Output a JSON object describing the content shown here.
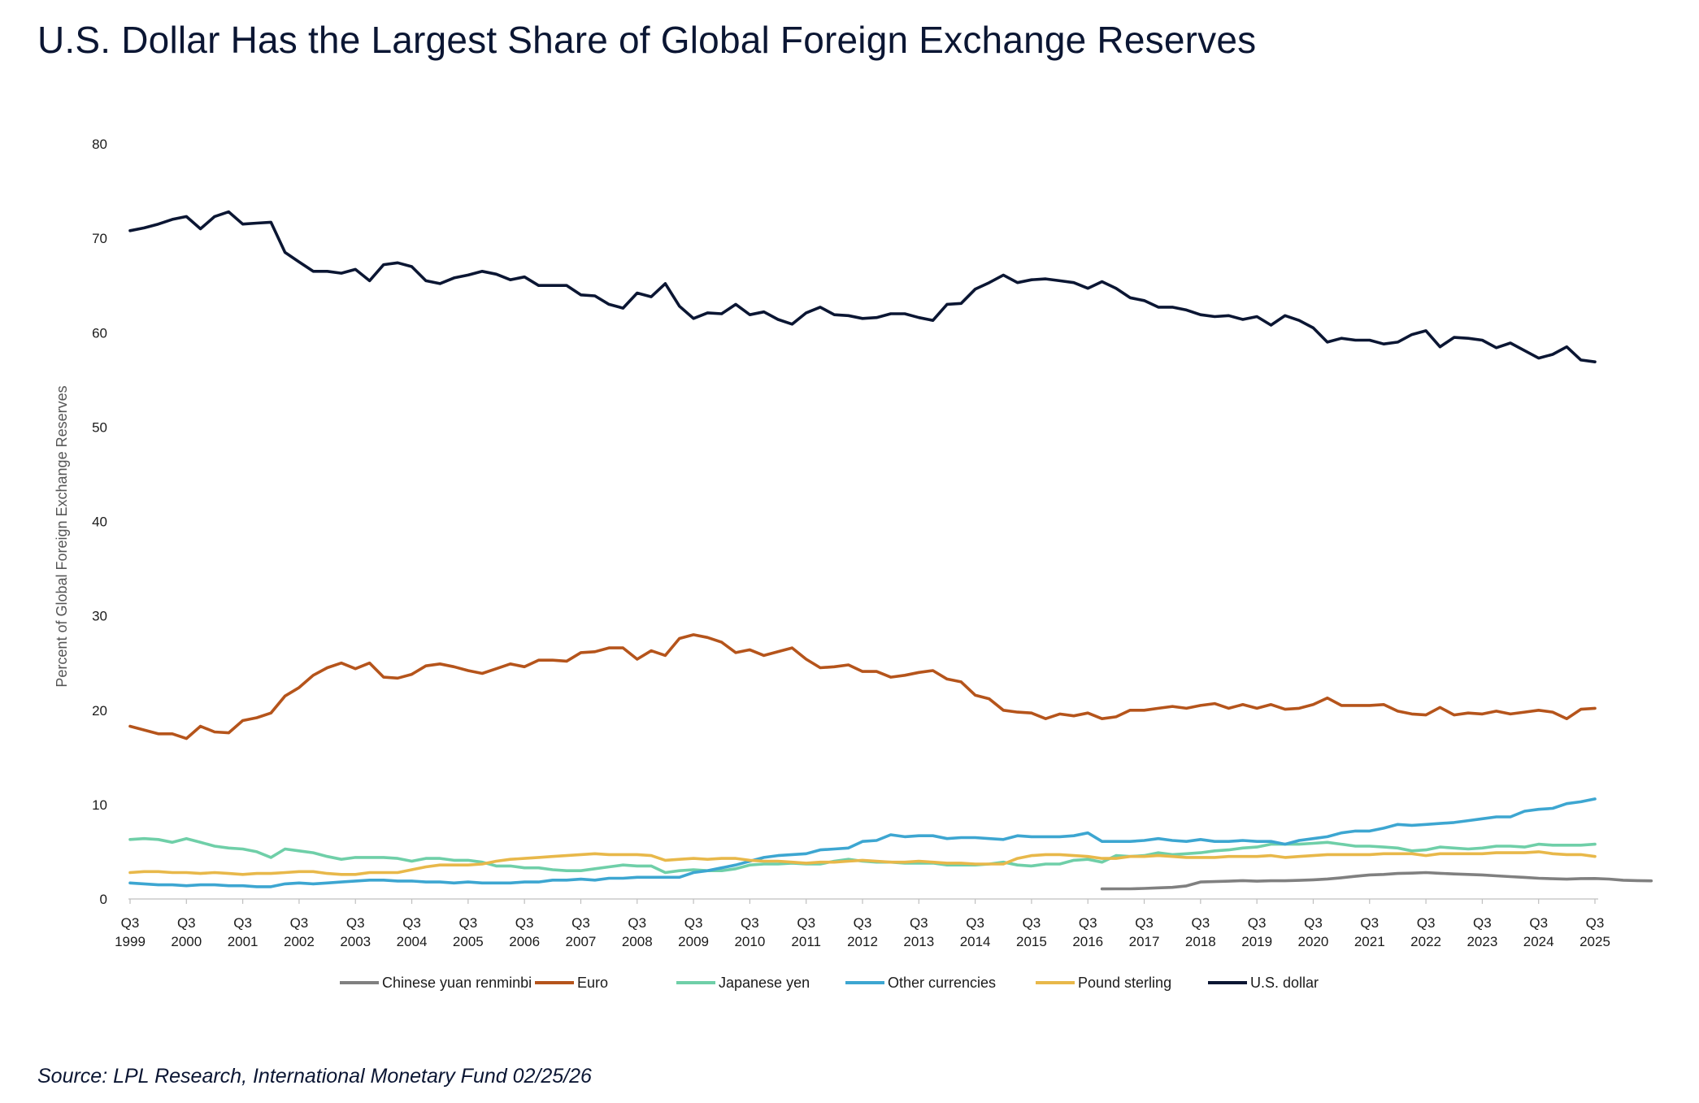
{
  "title": "U.S. Dollar Has the Largest Share of Global Foreign Exchange Reserves",
  "source": "Source: LPL Research, International Monetary Fund 02/25/26",
  "chart_data": {
    "type": "line",
    "title": "U.S. Dollar Has the Largest Share of Global Foreign Exchange Reserves",
    "ylabel": "Percent of Global Foreign Exchange Reserves",
    "xlabel": "",
    "ylim": [
      0,
      80
    ],
    "yticks": [
      0,
      10,
      20,
      30,
      40,
      50,
      60,
      70,
      80
    ],
    "grid": false,
    "legend_position": "bottom",
    "x_start": "Q3 1999",
    "x_end": "Q3 2025",
    "frequency": "quarterly",
    "xtick_labels": [
      {
        "q": "Q3",
        "year": "1999"
      },
      {
        "q": "Q3",
        "year": "2000"
      },
      {
        "q": "Q3",
        "year": "2001"
      },
      {
        "q": "Q3",
        "year": "2002"
      },
      {
        "q": "Q3",
        "year": "2003"
      },
      {
        "q": "Q3",
        "year": "2004"
      },
      {
        "q": "Q3",
        "year": "2005"
      },
      {
        "q": "Q3",
        "year": "2006"
      },
      {
        "q": "Q3",
        "year": "2007"
      },
      {
        "q": "Q3",
        "year": "2008"
      },
      {
        "q": "Q3",
        "year": "2009"
      },
      {
        "q": "Q3",
        "year": "2010"
      },
      {
        "q": "Q3",
        "year": "2011"
      },
      {
        "q": "Q3",
        "year": "2012"
      },
      {
        "q": "Q3",
        "year": "2013"
      },
      {
        "q": "Q3",
        "year": "2014"
      },
      {
        "q": "Q3",
        "year": "2015"
      },
      {
        "q": "Q3",
        "year": "2016"
      },
      {
        "q": "Q3",
        "year": "2017"
      },
      {
        "q": "Q3",
        "year": "2018"
      },
      {
        "q": "Q3",
        "year": "2019"
      },
      {
        "q": "Q3",
        "year": "2020"
      },
      {
        "q": "Q3",
        "year": "2021"
      },
      {
        "q": "Q3",
        "year": "2022"
      },
      {
        "q": "Q3",
        "year": "2023"
      },
      {
        "q": "Q3",
        "year": "2024"
      },
      {
        "q": "Q3",
        "year": "2025"
      }
    ],
    "series": [
      {
        "name": "Chinese yuan renminbi",
        "color": "#808080",
        "start": "Q4 2016",
        "values": [
          1.07,
          1.08,
          1.08,
          1.12,
          1.18,
          1.23,
          1.39,
          1.8,
          1.84,
          1.89,
          1.95,
          1.89,
          1.93,
          1.93,
          1.97,
          2.03,
          2.12,
          2.25,
          2.4,
          2.55,
          2.6,
          2.7,
          2.74,
          2.8,
          2.72,
          2.65,
          2.6,
          2.55,
          2.45,
          2.37,
          2.29,
          2.2,
          2.14,
          2.1,
          2.16,
          2.17,
          2.11,
          1.99,
          1.95,
          1.92
        ]
      },
      {
        "name": "Euro",
        "color": "#b5541b",
        "start": "Q3 1999",
        "values": [
          18.3,
          17.9,
          17.5,
          17.5,
          17.0,
          18.3,
          17.7,
          17.6,
          18.9,
          19.2,
          19.7,
          21.5,
          22.4,
          23.7,
          24.5,
          25.0,
          24.4,
          25.0,
          23.5,
          23.4,
          23.8,
          24.7,
          24.9,
          24.6,
          24.2,
          23.9,
          24.4,
          24.9,
          24.6,
          25.3,
          25.3,
          25.2,
          26.1,
          26.2,
          26.6,
          26.6,
          25.4,
          26.3,
          25.8,
          27.6,
          28.0,
          27.7,
          27.2,
          26.1,
          26.4,
          25.8,
          26.2,
          26.6,
          25.4,
          24.5,
          24.6,
          24.8,
          24.1,
          24.1,
          23.5,
          23.7,
          24.0,
          24.2,
          23.3,
          23.0,
          21.6,
          21.2,
          20.0,
          19.8,
          19.7,
          19.1,
          19.6,
          19.4,
          19.7,
          19.1,
          19.3,
          20.0,
          20.0,
          20.2,
          20.4,
          20.2,
          20.5,
          20.7,
          20.2,
          20.6,
          20.2,
          20.6,
          20.1,
          20.2,
          20.6,
          21.3,
          20.5,
          20.5,
          20.5,
          20.6,
          19.9,
          19.6,
          19.5,
          20.3,
          19.5,
          19.7,
          19.6,
          19.9,
          19.6,
          19.8,
          20.0,
          19.8,
          19.1,
          20.1,
          20.2
        ]
      },
      {
        "name": "Japanese yen",
        "color": "#6fcfa8",
        "start": "Q3 1999",
        "values": [
          6.3,
          6.4,
          6.3,
          6.0,
          6.4,
          6.0,
          5.6,
          5.4,
          5.3,
          5.0,
          4.4,
          5.3,
          5.1,
          4.9,
          4.5,
          4.2,
          4.4,
          4.4,
          4.4,
          4.3,
          4.0,
          4.3,
          4.3,
          4.1,
          4.1,
          3.9,
          3.5,
          3.5,
          3.3,
          3.3,
          3.1,
          3.0,
          3.0,
          3.2,
          3.4,
          3.6,
          3.5,
          3.5,
          2.8,
          3.0,
          3.1,
          3.0,
          3.0,
          3.2,
          3.6,
          3.7,
          3.7,
          3.8,
          3.7,
          3.7,
          4.0,
          4.2,
          4.0,
          3.9,
          3.9,
          3.8,
          3.8,
          3.8,
          3.6,
          3.6,
          3.6,
          3.7,
          3.9,
          3.6,
          3.5,
          3.7,
          3.7,
          4.1,
          4.2,
          3.9,
          4.6,
          4.5,
          4.6,
          4.9,
          4.7,
          4.8,
          4.9,
          5.1,
          5.2,
          5.4,
          5.5,
          5.8,
          5.8,
          5.8,
          5.9,
          6.0,
          5.8,
          5.6,
          5.6,
          5.5,
          5.4,
          5.1,
          5.2,
          5.5,
          5.4,
          5.3,
          5.4,
          5.6,
          5.6,
          5.5,
          5.8,
          5.7,
          5.7,
          5.7,
          5.8
        ]
      },
      {
        "name": "Other currencies",
        "color": "#3da6d1",
        "start": "Q3 1999",
        "values": [
          1.7,
          1.6,
          1.5,
          1.5,
          1.4,
          1.5,
          1.5,
          1.4,
          1.4,
          1.3,
          1.3,
          1.6,
          1.7,
          1.6,
          1.7,
          1.8,
          1.9,
          2.0,
          2.0,
          1.9,
          1.9,
          1.8,
          1.8,
          1.7,
          1.8,
          1.7,
          1.7,
          1.7,
          1.8,
          1.8,
          2.0,
          2.0,
          2.1,
          2.0,
          2.2,
          2.2,
          2.3,
          2.3,
          2.3,
          2.3,
          2.8,
          3.0,
          3.3,
          3.6,
          4.0,
          4.4,
          4.6,
          4.7,
          4.8,
          5.2,
          5.3,
          5.4,
          6.1,
          6.2,
          6.8,
          6.6,
          6.7,
          6.7,
          6.4,
          6.5,
          6.5,
          6.4,
          6.3,
          6.7,
          6.6,
          6.6,
          6.6,
          6.7,
          7.0,
          6.1,
          6.1,
          6.1,
          6.2,
          6.4,
          6.2,
          6.1,
          6.3,
          6.1,
          6.1,
          6.2,
          6.1,
          6.1,
          5.8,
          6.2,
          6.4,
          6.6,
          7.0,
          7.2,
          7.2,
          7.5,
          7.9,
          7.8,
          7.9,
          8.0,
          8.1,
          8.3,
          8.5,
          8.7,
          8.7,
          9.3,
          9.5,
          9.6,
          10.1,
          10.3,
          10.6
        ]
      },
      {
        "name": "Pound sterling",
        "color": "#e8b84a",
        "start": "Q3 1999",
        "values": [
          2.8,
          2.9,
          2.9,
          2.8,
          2.8,
          2.7,
          2.8,
          2.7,
          2.6,
          2.7,
          2.7,
          2.8,
          2.9,
          2.9,
          2.7,
          2.6,
          2.6,
          2.8,
          2.8,
          2.8,
          3.1,
          3.4,
          3.6,
          3.6,
          3.6,
          3.7,
          4.0,
          4.2,
          4.3,
          4.4,
          4.5,
          4.6,
          4.7,
          4.8,
          4.7,
          4.7,
          4.7,
          4.6,
          4.1,
          4.2,
          4.3,
          4.2,
          4.3,
          4.3,
          4.1,
          4.0,
          4.0,
          3.9,
          3.8,
          3.9,
          3.9,
          4.0,
          4.1,
          4.0,
          3.9,
          3.9,
          4.0,
          3.9,
          3.8,
          3.8,
          3.7,
          3.7,
          3.7,
          4.3,
          4.6,
          4.7,
          4.7,
          4.6,
          4.5,
          4.3,
          4.3,
          4.5,
          4.5,
          4.6,
          4.5,
          4.4,
          4.4,
          4.4,
          4.5,
          4.5,
          4.5,
          4.6,
          4.4,
          4.5,
          4.6,
          4.7,
          4.7,
          4.7,
          4.7,
          4.8,
          4.8,
          4.8,
          4.6,
          4.8,
          4.8,
          4.8,
          4.8,
          4.9,
          4.9,
          4.9,
          5.0,
          4.8,
          4.7,
          4.7,
          4.5
        ]
      },
      {
        "name": "U.S. dollar",
        "color": "#0b1633",
        "start": "Q3 1999",
        "values": [
          70.8,
          71.1,
          71.5,
          72.0,
          72.3,
          71.0,
          72.3,
          72.8,
          71.5,
          71.6,
          71.7,
          68.5,
          67.5,
          66.5,
          66.5,
          66.3,
          66.7,
          65.5,
          67.2,
          67.4,
          67.0,
          65.5,
          65.2,
          65.8,
          66.1,
          66.5,
          66.2,
          65.6,
          65.9,
          65.0,
          65.0,
          65.0,
          64.0,
          63.9,
          63.0,
          62.6,
          64.2,
          63.8,
          65.2,
          62.8,
          61.5,
          62.1,
          62.0,
          63.0,
          61.9,
          62.2,
          61.4,
          60.9,
          62.1,
          62.7,
          61.9,
          61.8,
          61.5,
          61.6,
          62.0,
          62.0,
          61.6,
          61.3,
          63.0,
          63.1,
          64.6,
          65.3,
          66.1,
          65.3,
          65.6,
          65.7,
          65.5,
          65.3,
          64.7,
          65.4,
          64.7,
          63.7,
          63.4,
          62.7,
          62.7,
          62.4,
          61.9,
          61.7,
          61.8,
          61.4,
          61.7,
          60.8,
          61.8,
          61.3,
          60.5,
          59.0,
          59.4,
          59.2,
          59.2,
          58.8,
          59.0,
          59.8,
          60.2,
          58.5,
          59.5,
          59.4,
          59.2,
          58.4,
          58.9,
          58.1,
          57.3,
          57.7,
          58.5,
          57.1,
          56.9
        ]
      }
    ]
  }
}
